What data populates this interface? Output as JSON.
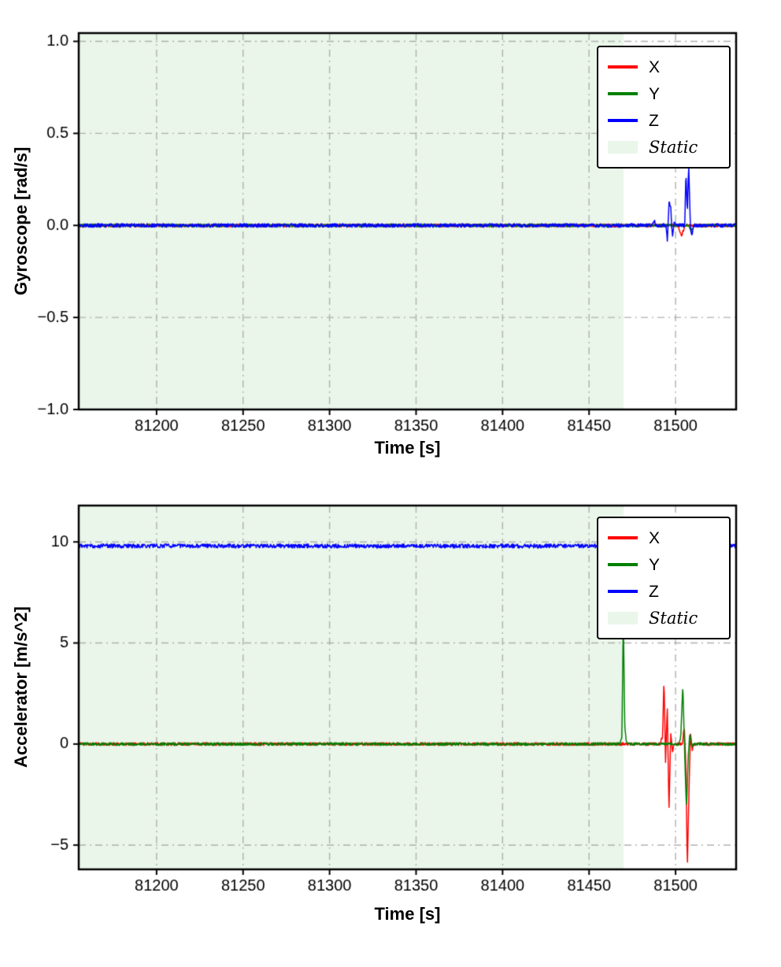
{
  "figure": {
    "background": "#ffffff"
  },
  "chart_data": [
    {
      "type": "line",
      "title": "",
      "xlabel": "Time [s]",
      "ylabel": "Gyroscope [rad/s]",
      "xlim": [
        81155,
        81535
      ],
      "ylim": [
        -1.0,
        1.045
      ],
      "grid": true,
      "grid_style": "dash-dot",
      "grid_color": "#b0b0b0",
      "xticks": {
        "values": [
          81200,
          81250,
          81300,
          81350,
          81400,
          81450,
          81500
        ],
        "labels": [
          "81200",
          "81250",
          "81300",
          "81350",
          "81400",
          "81450",
          "81500"
        ]
      },
      "yticks": {
        "values": [
          1.0,
          0.5,
          0.0,
          -0.5,
          -1.0
        ],
        "labels": [
          "1.0",
          "0.5",
          "0.0",
          "−0.5",
          "−1.0"
        ]
      },
      "static_region": {
        "label": "Static",
        "x_start": 81155,
        "x_end": 81470,
        "color": "#e9f6e9"
      },
      "legend": {
        "position": "upper right",
        "entries": [
          {
            "label": "X",
            "color": "#ff0000",
            "type": "line"
          },
          {
            "label": "Y",
            "color": "#008000",
            "type": "line"
          },
          {
            "label": "Z",
            "color": "#0000ff",
            "type": "line"
          },
          {
            "label": "Static",
            "color": "#e9f6e9",
            "type": "patch",
            "italic": true
          }
        ]
      },
      "series": [
        {
          "name": "X",
          "color": "#ff0000",
          "noise": 0.008,
          "points": [
            [
              81155,
              0
            ],
            [
              81501.5,
              0
            ],
            [
              81503.5,
              -0.055
            ],
            [
              81505.5,
              0
            ],
            [
              81535,
              0
            ]
          ]
        },
        {
          "name": "Y",
          "color": "#008000",
          "noise": 0.008,
          "points": [
            [
              81155,
              0
            ],
            [
              81507.5,
              0
            ],
            [
              81509,
              -0.035
            ],
            [
              81510.5,
              0
            ],
            [
              81535,
              0
            ]
          ]
        },
        {
          "name": "Z",
          "color": "#0000ff",
          "noise": 0.01,
          "points": [
            [
              81155,
              0
            ],
            [
              81486.5,
              0
            ],
            [
              81487.5,
              0.03
            ],
            [
              81488.5,
              0
            ],
            [
              81494.5,
              0
            ],
            [
              81495.3,
              -0.09
            ],
            [
              81496.2,
              0.13
            ],
            [
              81497.2,
              0.1
            ],
            [
              81498.2,
              -0.07
            ],
            [
              81499.2,
              0.02
            ],
            [
              81500,
              0
            ],
            [
              81505.3,
              0
            ],
            [
              81506.0,
              0.29
            ],
            [
              81506.8,
              0.07
            ],
            [
              81507.6,
              0.33
            ],
            [
              81508.6,
              -0.02
            ],
            [
              81509.6,
              -0.05
            ],
            [
              81510.6,
              0
            ],
            [
              81535,
              0
            ]
          ]
        }
      ]
    },
    {
      "type": "line",
      "title": "",
      "xlabel": "Time [s]",
      "ylabel": "Accelerator [m/s^2]",
      "xlim": [
        81155,
        81535
      ],
      "ylim": [
        -6.2,
        11.8
      ],
      "grid": true,
      "grid_style": "dash-dot",
      "grid_color": "#b0b0b0",
      "xticks": {
        "values": [
          81200,
          81250,
          81300,
          81350,
          81400,
          81450,
          81500
        ],
        "labels": [
          "81200",
          "81250",
          "81300",
          "81350",
          "81400",
          "81450",
          "81500"
        ]
      },
      "yticks": {
        "values": [
          10,
          5,
          0,
          -5
        ],
        "labels": [
          "10",
          "5",
          "0",
          "−5"
        ]
      },
      "static_region": {
        "label": "Static",
        "x_start": 81155,
        "x_end": 81470,
        "color": "#e9f6e9"
      },
      "legend": {
        "position": "upper right",
        "entries": [
          {
            "label": "X",
            "color": "#ff0000",
            "type": "line"
          },
          {
            "label": "Y",
            "color": "#008000",
            "type": "line"
          },
          {
            "label": "Z",
            "color": "#0000ff",
            "type": "line"
          },
          {
            "label": "Static",
            "color": "#e9f6e9",
            "type": "patch",
            "italic": true
          }
        ]
      },
      "series": [
        {
          "name": "X",
          "color": "#ff0000",
          "noise": 0.07,
          "points": [
            [
              81155,
              0
            ],
            [
              81491,
              0
            ],
            [
              81492.5,
              0.4
            ],
            [
              81493.3,
              3.2
            ],
            [
              81494.2,
              -0.9
            ],
            [
              81495.2,
              1.9
            ],
            [
              81496.2,
              -3.35
            ],
            [
              81497.2,
              0.6
            ],
            [
              81498.2,
              -0.4
            ],
            [
              81499,
              0
            ],
            [
              81504,
              0
            ],
            [
              81505,
              0.9
            ],
            [
              81506,
              -1.2
            ],
            [
              81506.8,
              -6.1
            ],
            [
              81507.8,
              -2.2
            ],
            [
              81508.6,
              0.5
            ],
            [
              81509.6,
              -0.3
            ],
            [
              81510.5,
              0
            ],
            [
              81535,
              0
            ]
          ]
        },
        {
          "name": "Y",
          "color": "#008000",
          "noise": 0.07,
          "points": [
            [
              81155,
              0
            ],
            [
              81468,
              0
            ],
            [
              81469,
              0.4
            ],
            [
              81469.8,
              6.35
            ],
            [
              81470.6,
              1.0
            ],
            [
              81471.4,
              0.2
            ],
            [
              81472.5,
              0
            ],
            [
              81502,
              0
            ],
            [
              81503,
              0.4
            ],
            [
              81504.2,
              2.9
            ],
            [
              81505.2,
              -0.3
            ],
            [
              81506.3,
              -3.25
            ],
            [
              81507.3,
              -0.6
            ],
            [
              81508.3,
              0.6
            ],
            [
              81509.3,
              -0.2
            ],
            [
              81510.3,
              0
            ],
            [
              81535,
              0
            ]
          ]
        },
        {
          "name": "Z",
          "color": "#0000ff",
          "noise": 0.1,
          "points": [
            [
              81155,
              9.8
            ],
            [
              81535,
              9.8
            ]
          ]
        }
      ]
    }
  ]
}
